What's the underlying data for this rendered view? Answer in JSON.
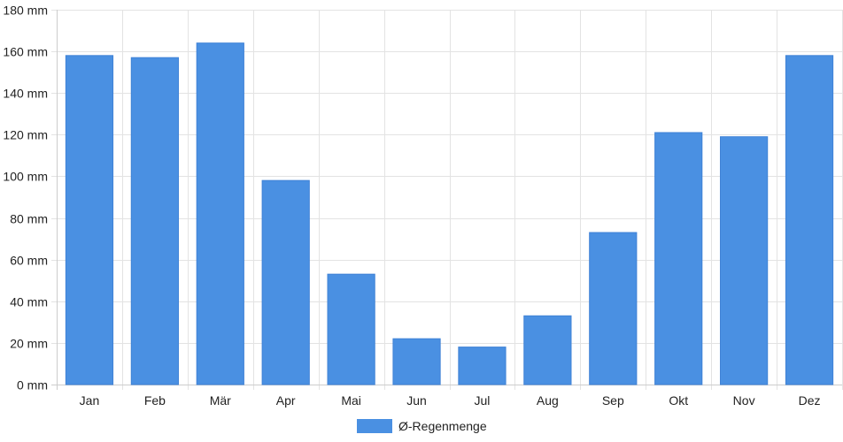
{
  "chart_data": {
    "type": "bar",
    "categories": [
      "Jan",
      "Feb",
      "Mär",
      "Apr",
      "Mai",
      "Jun",
      "Jul",
      "Aug",
      "Sep",
      "Okt",
      "Nov",
      "Dez"
    ],
    "series": [
      {
        "name": "Ø-Regenmenge",
        "color": "#4a90e2",
        "values": [
          158,
          157,
          164,
          98,
          53,
          22,
          18,
          33,
          73,
          121,
          119,
          158
        ]
      }
    ],
    "ylim": [
      0,
      180
    ],
    "yticks": [
      0,
      20,
      40,
      60,
      80,
      100,
      120,
      140,
      160,
      180
    ],
    "ytick_unit": "mm",
    "grid": true,
    "legend_position": "bottom-center"
  }
}
